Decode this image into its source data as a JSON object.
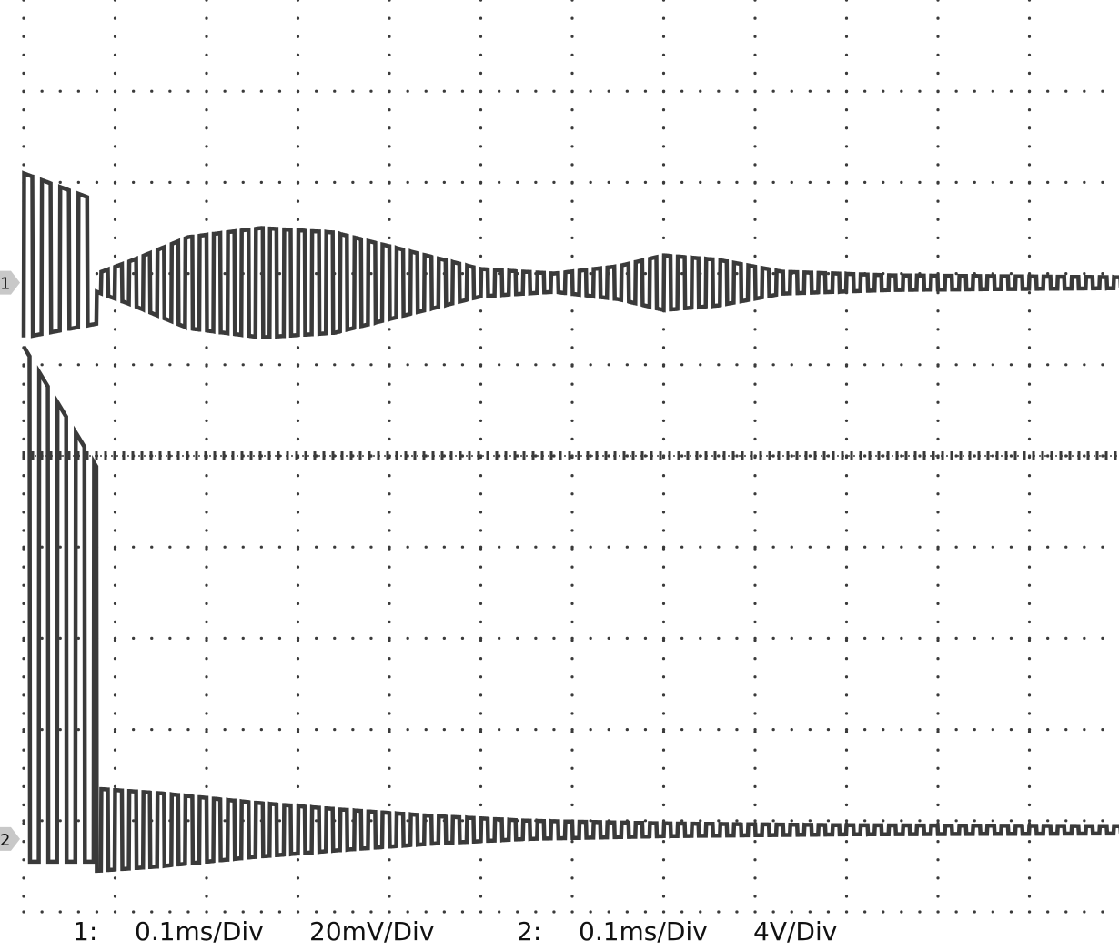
{
  "chart_data": {
    "type": "line",
    "title": "",
    "grid": true,
    "grid_style": "dotted",
    "divisions": {
      "x": 12,
      "y": 10
    },
    "colors": {
      "trace": "#3a3a3a",
      "grid": "#3a3a3a",
      "marker": "#c8c8c8",
      "background": "#ffffff"
    },
    "channel_markers": [
      {
        "label": "1",
        "ground_div": 3.1
      },
      {
        "label": "2",
        "ground_div": 9.2
      }
    ],
    "series": [
      {
        "name": "1",
        "time_per_div": "0.1ms/Div",
        "volts_per_div": "20mV/Div",
        "offset_div": 3.1,
        "burst": {
          "end_div": 0.8,
          "amplitude_div": 1.2
        },
        "periods_per_div": 6.5,
        "envelope_div": [
          [
            0.8,
            0.1
          ],
          [
            1.2,
            0.25
          ],
          [
            1.8,
            0.5
          ],
          [
            2.6,
            0.6
          ],
          [
            3.4,
            0.55
          ],
          [
            4.2,
            0.35
          ],
          [
            5.0,
            0.15
          ],
          [
            5.8,
            0.1
          ],
          [
            6.5,
            0.18
          ],
          [
            7.0,
            0.3
          ],
          [
            7.6,
            0.25
          ],
          [
            8.3,
            0.12
          ],
          [
            9.5,
            0.08
          ],
          [
            12.0,
            0.06
          ]
        ]
      },
      {
        "name": "2",
        "time_per_div": "0.1ms/Div",
        "volts_per_div": "4V/Div",
        "offset_div": 9.1,
        "burst": {
          "end_div": 0.8,
          "amplitude_div": 5.3
        },
        "periods_per_div": 6.5,
        "envelope_div": [
          [
            0.8,
            0.45
          ],
          [
            1.5,
            0.4
          ],
          [
            2.5,
            0.3
          ],
          [
            3.5,
            0.22
          ],
          [
            4.5,
            0.15
          ],
          [
            5.5,
            0.1
          ],
          [
            7.0,
            0.07
          ],
          [
            9.0,
            0.05
          ],
          [
            12.0,
            0.04
          ]
        ]
      }
    ]
  },
  "footer": {
    "ch1_label": "1:",
    "ch1_time": "0.1ms/Div",
    "ch1_volts": "20mV/Div",
    "ch2_label": "2:",
    "ch2_time": "0.1ms/Div",
    "ch2_volts": "4V/Div"
  }
}
